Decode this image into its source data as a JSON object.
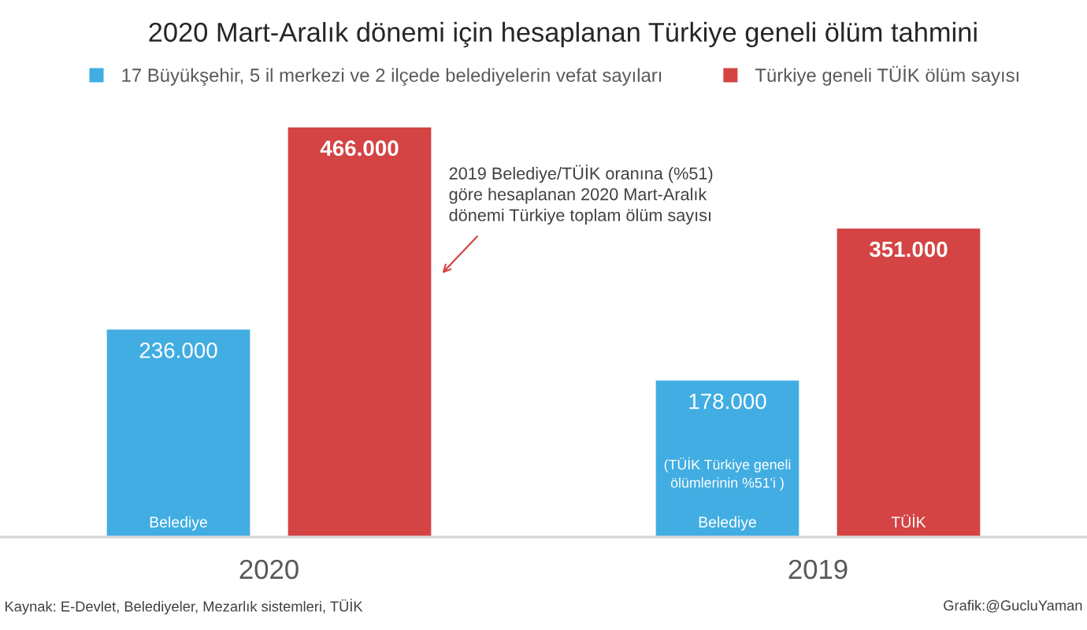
{
  "chart_data": {
    "type": "bar",
    "title": "2020 Mart-Aralık dönemi için hesaplanan Türkiye geneli ölüm tahmini",
    "categories": [
      "2020",
      "2019"
    ],
    "series": [
      {
        "name": "17 Büyükşehir, 5 il merkezi ve 2 ilçede belediyelerin vefat sayıları",
        "color": "#41ade2",
        "values": [
          236000,
          178000
        ],
        "value_labels": [
          "236.000",
          "178.000"
        ]
      },
      {
        "name": "Türkiye geneli TÜİK ölüm sayısı",
        "color": "#d44444",
        "values": [
          466000,
          351000
        ],
        "value_labels": [
          "466.000",
          "351.000"
        ]
      }
    ],
    "legend": "top",
    "tick_labels": "x",
    "annotations": [
      "Belediye",
      "Belediye",
      "(TÜİK Türkiye geneli\nölümlerinin %51'i )",
      "TÜİK",
      "2019 Belediye/TÜİK oranına (%51)\ngöre hesaplanan 2020 Mart-Aralık\ndönemi Türkiye toplam ölüm sayısı",
      "Kaynak: E-Devlet, Belediyeler, Mezarlık sistemleri, TÜİK",
      "Grafik:@GucluYaman"
    ]
  }
}
